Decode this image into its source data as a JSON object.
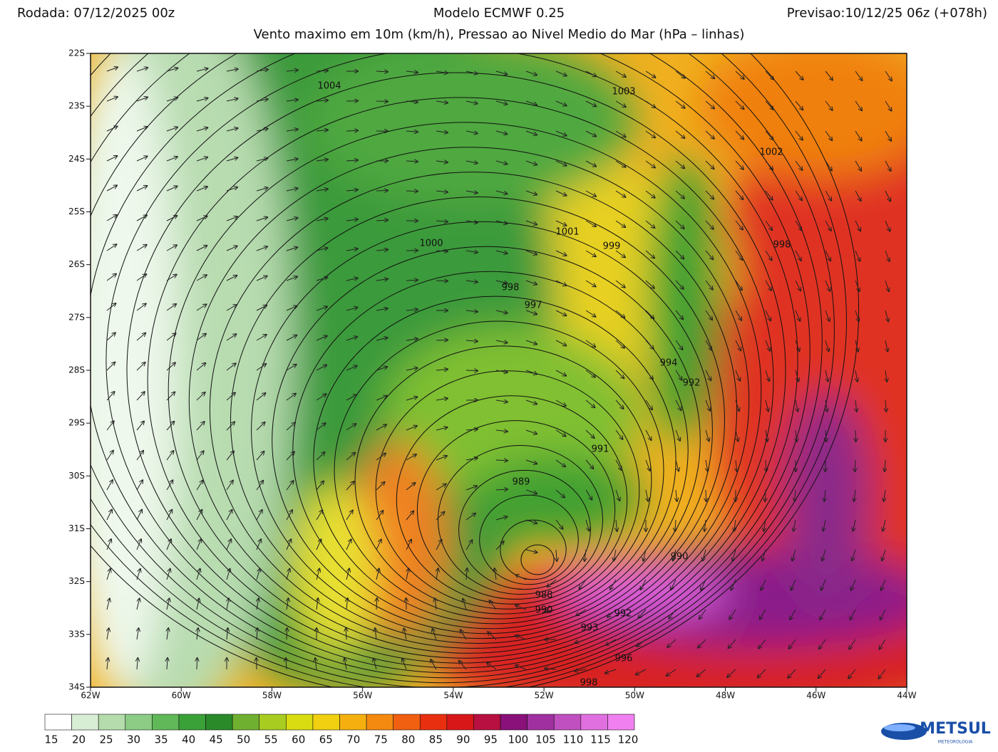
{
  "header": {
    "run": "Rodada: 07/12/2025 00z",
    "model": "Modelo ECMWF 0.25",
    "forecast": "Previsao:10/12/25 06z (+078h)",
    "subtitle": "Vento maximo em 10m (km/h), Pressao ao Nivel Medio do Mar (hPa – linhas)"
  },
  "latitude_labels": [
    "22S",
    "23S",
    "24S",
    "25S",
    "26S",
    "27S",
    "28S",
    "29S",
    "30S",
    "31S",
    "32S",
    "33S",
    "34S"
  ],
  "longitude_labels": [
    "62W",
    "60W",
    "58W",
    "56W",
    "54W",
    "52W",
    "50W",
    "48W",
    "46W",
    "44W"
  ],
  "isobar_labels": [
    1004,
    1003,
    1002,
    1001,
    1000,
    999,
    998,
    998,
    997,
    994,
    992,
    991,
    989,
    990,
    988,
    990,
    992,
    993,
    996,
    998
  ],
  "colorbar_labels": [
    15,
    20,
    25,
    30,
    35,
    40,
    45,
    50,
    55,
    60,
    65,
    70,
    75,
    80,
    85,
    90,
    95,
    100,
    105,
    110,
    115,
    120
  ],
  "logo": {
    "name": "METSUL",
    "tagline": "METEOROLOGIA"
  }
}
